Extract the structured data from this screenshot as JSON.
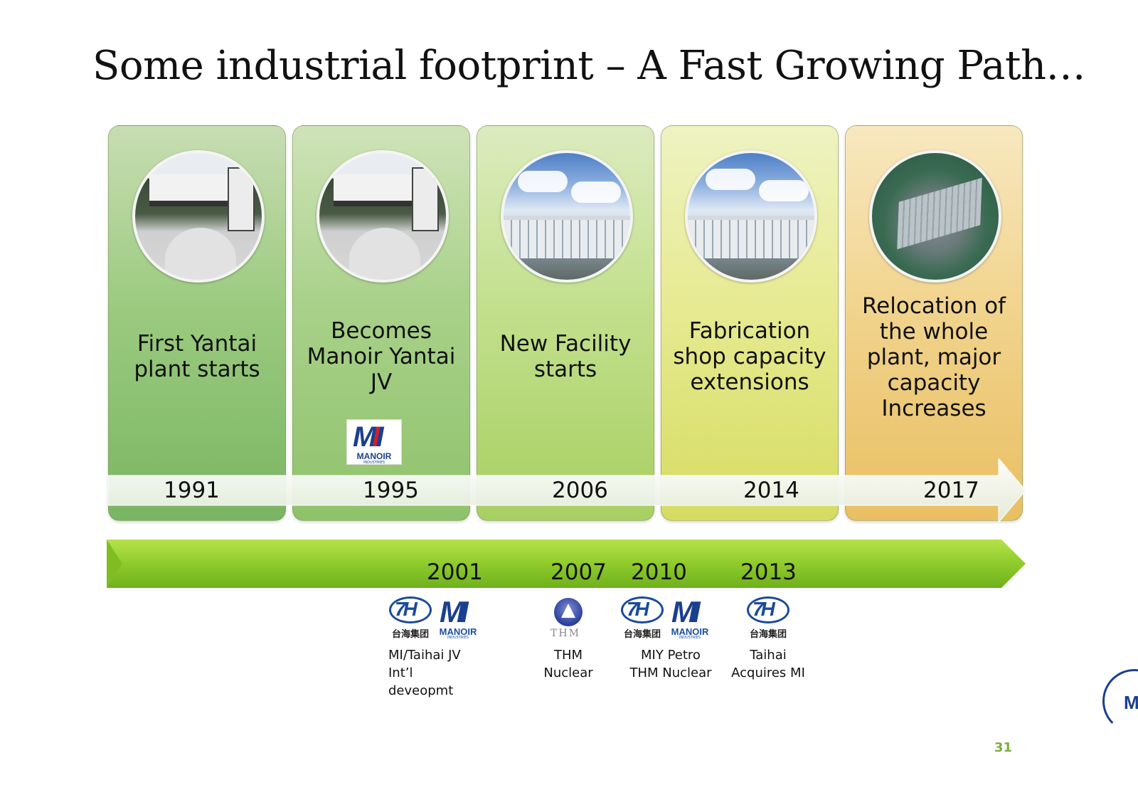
{
  "title": "Some industrial footprint – A Fast Growing Path…",
  "milestones": [
    {
      "text_lines": [
        "First Yantai",
        "plant starts"
      ],
      "year": "1991",
      "photo": "old-plant-photo"
    },
    {
      "text_lines": [
        "Becomes",
        "Manoir Yantai",
        "JV"
      ],
      "year": "1995",
      "photo": "old-plant-photo",
      "logo": {
        "word": "MANOIR",
        "sub": "INDUSTRIES"
      }
    },
    {
      "text_lines": [
        "New Facility",
        "starts"
      ],
      "year": "2006",
      "photo": "new-facility-photo"
    },
    {
      "text_lines": [
        "Fabrication",
        "shop capacity",
        "extensions"
      ],
      "year": "2014",
      "photo": "new-facility-photo"
    },
    {
      "text_lines": [
        "Relocation of",
        "the whole",
        "plant, major",
        "capacity",
        "Increases"
      ],
      "year": "2017",
      "photo": "aerial-plant-photo"
    }
  ],
  "lower_timeline": {
    "years": [
      "2001",
      "2007",
      "2010",
      "2013"
    ],
    "events": [
      {
        "caption_lines": [
          "MI/Taihai JV",
          "Int’l",
          "deveopmt"
        ],
        "logos": [
          "taihai-logo",
          "manoir-logo"
        ]
      },
      {
        "caption_lines": [
          "THM",
          "Nuclear"
        ],
        "logos": [
          "thm-logo"
        ]
      },
      {
        "caption_lines": [
          "MIY Petro",
          "THM Nuclear"
        ],
        "logos": [
          "taihai-logo",
          "manoir-logo"
        ]
      },
      {
        "caption_lines": [
          "Taihai",
          "Acquires MI"
        ],
        "logos": [
          "taihai-logo"
        ]
      }
    ]
  },
  "logo_text": {
    "manoir_word": "MANOIR",
    "manoir_sub": "INDUSTRIES",
    "taihai_cn": "台海集团",
    "thm": "THM"
  },
  "page_number": "31",
  "colors": {
    "accent_green": "#7cae3c",
    "lower_arrow": "#8fcb2c",
    "brand_blue": "#1b3f8f"
  }
}
